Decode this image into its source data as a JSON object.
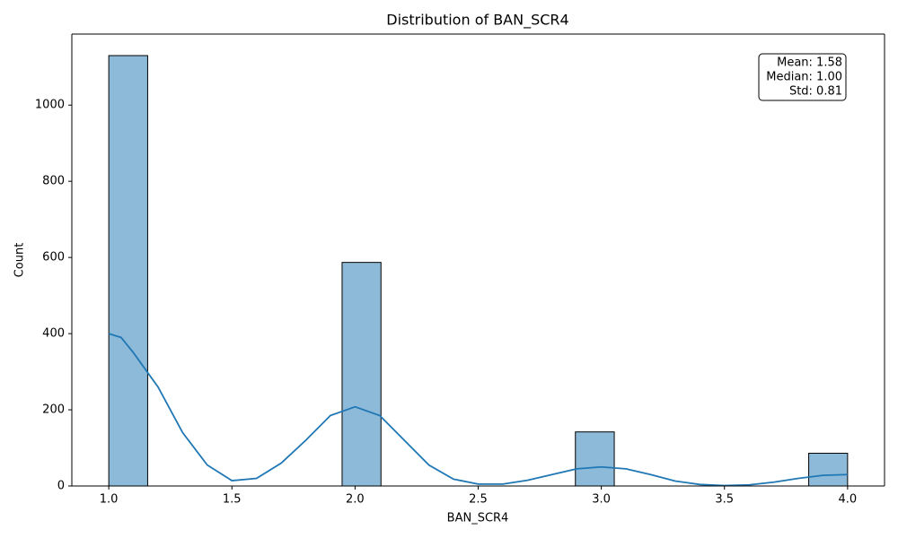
{
  "chart_data": {
    "type": "histogram",
    "title": "Distribution of BAN_SCR4",
    "xlabel": "BAN_SCR4",
    "ylabel": "Count",
    "bins": [
      1,
      1.1579,
      1.3158,
      1.4737,
      1.6316,
      1.7895,
      1.9474,
      2.1053,
      2.2632,
      2.4211,
      2.5789,
      2.7368,
      2.8947,
      3.0526,
      3.2105,
      3.3684,
      3.5263,
      3.6842,
      3.8421,
      4
    ],
    "counts": [
      1130,
      0,
      0,
      0,
      0,
      0,
      587,
      0,
      0,
      0,
      0,
      0,
      142,
      0,
      0,
      0,
      0,
      0,
      86
    ],
    "color": "#8ebad9",
    "edgecolor": "#000000",
    "kde": {
      "color": "#1f77b4",
      "x": [
        1.0,
        1.05,
        1.1,
        1.2,
        1.3,
        1.4,
        1.5,
        1.6,
        1.7,
        1.8,
        1.9,
        2.0,
        2.1,
        2.2,
        2.3,
        2.4,
        2.5,
        2.6,
        2.7,
        2.8,
        2.9,
        3.0,
        3.1,
        3.2,
        3.3,
        3.4,
        3.5,
        3.6,
        3.7,
        3.8,
        3.9,
        4.0
      ],
      "values": [
        400,
        390,
        350,
        260,
        140,
        55,
        14,
        20,
        60,
        120,
        185,
        208,
        185,
        120,
        55,
        18,
        5,
        5,
        15,
        30,
        45,
        50,
        45,
        30,
        13,
        4,
        1,
        3,
        10,
        20,
        28,
        30
      ]
    },
    "stats": [
      "Mean: 1.58",
      "Median: 1.00",
      "Std: 0.81"
    ],
    "xlim": [
      0.85,
      4.15
    ],
    "xticks": [
      {
        "value": 1,
        "label": "1.0"
      },
      {
        "value": 1.5,
        "label": "1.5"
      },
      {
        "value": 2,
        "label": "2.0"
      },
      {
        "value": 2.5,
        "label": "2.5"
      },
      {
        "value": 3,
        "label": "3.0"
      },
      {
        "value": 3.5,
        "label": "3.5"
      },
      {
        "value": 4,
        "label": "4.0"
      }
    ],
    "ylim": [
      0,
      1186.5
    ],
    "yticks": [
      0,
      200,
      400,
      600,
      800,
      1000
    ],
    "grid": false
  }
}
